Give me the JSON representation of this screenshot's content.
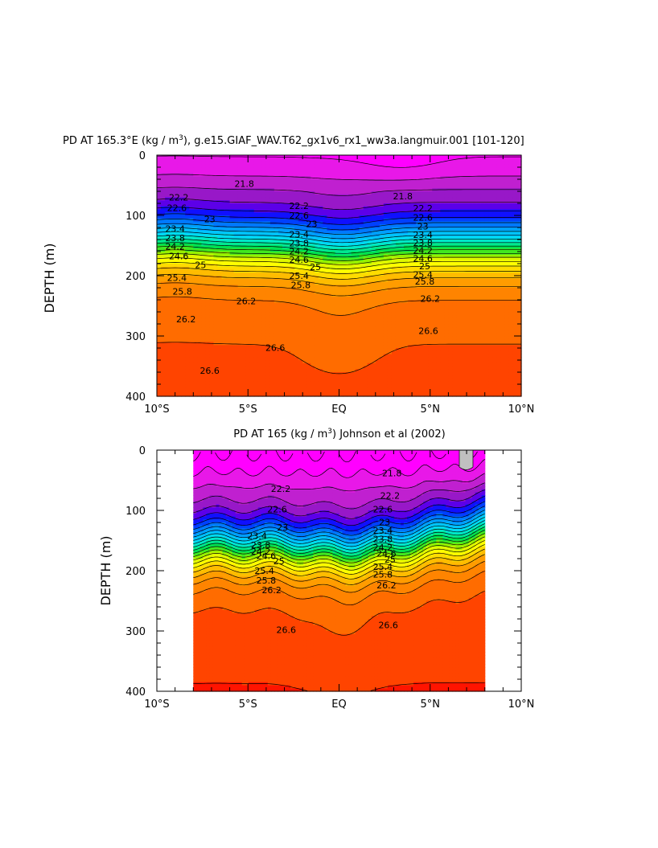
{
  "chart_data": [
    {
      "type": "heatmap",
      "subtype": "filled-contour",
      "title": "PD AT 165.3°E (kg / m³), g.e15.GIAF_WAV.T62_gx1v6_rx1_ww3a.langmuir.001 [101-120]",
      "title_main": "PD AT 165.3°E (kg / m",
      "title_sup": "3",
      "title_rest": "), g.e15.GIAF_WAV.T62_gx1v6_rx1_ww3a.langmuir.001 ",
      "title_bracket": "[101-120]",
      "xlabel": "",
      "ylabel": "DEPTH (m)",
      "xlim": [
        -10,
        10
      ],
      "ylim": [
        400,
        0
      ],
      "x_ticks": [
        -10,
        -5,
        0,
        5,
        10
      ],
      "x_tick_labels": [
        "10°S",
        "5°S",
        "EQ",
        "5°N",
        "10°N"
      ],
      "y_ticks": [
        0,
        100,
        200,
        300,
        400
      ],
      "y_tick_labels": [
        "0",
        "100",
        "200",
        "300",
        "400"
      ],
      "data_extent_lat": [
        -10,
        10
      ],
      "contour_interval": 0.2,
      "contour_levels": [
        21.4,
        21.6,
        21.8,
        22.0,
        22.2,
        22.4,
        22.6,
        22.8,
        23.0,
        23.2,
        23.4,
        23.6,
        23.8,
        24.0,
        24.2,
        24.4,
        24.6,
        24.8,
        25.0,
        25.2,
        25.4,
        25.6,
        25.8,
        26.0,
        26.2,
        26.4,
        26.6,
        26.8
      ],
      "contour_labels": [
        {
          "text": "21.8",
          "lat": -5.2,
          "depth": 47
        },
        {
          "text": "21.8",
          "lat": 3.5,
          "depth": 68
        },
        {
          "text": "22.2",
          "lat": -8.8,
          "depth": 70
        },
        {
          "text": "22.2",
          "lat": -2.2,
          "depth": 84
        },
        {
          "text": "22.2",
          "lat": 4.6,
          "depth": 88
        },
        {
          "text": "22.6",
          "lat": -8.9,
          "depth": 87
        },
        {
          "text": "22.6",
          "lat": -2.2,
          "depth": 100
        },
        {
          "text": "22.6",
          "lat": 4.6,
          "depth": 103
        },
        {
          "text": "23",
          "lat": -7.1,
          "depth": 106
        },
        {
          "text": "23",
          "lat": -1.5,
          "depth": 114
        },
        {
          "text": "23",
          "lat": 4.6,
          "depth": 118
        },
        {
          "text": "23.4",
          "lat": -9.0,
          "depth": 122
        },
        {
          "text": "23.4",
          "lat": -2.2,
          "depth": 131
        },
        {
          "text": "23.4",
          "lat": 4.6,
          "depth": 132
        },
        {
          "text": "23.8",
          "lat": -9.0,
          "depth": 137
        },
        {
          "text": "23.8",
          "lat": -2.2,
          "depth": 146
        },
        {
          "text": "23.8",
          "lat": 4.6,
          "depth": 145
        },
        {
          "text": "24.2",
          "lat": -9.0,
          "depth": 151
        },
        {
          "text": "24.2",
          "lat": -2.2,
          "depth": 159
        },
        {
          "text": "24.2",
          "lat": 4.6,
          "depth": 158
        },
        {
          "text": "24.6",
          "lat": -8.8,
          "depth": 167
        },
        {
          "text": "24.6",
          "lat": -2.2,
          "depth": 173
        },
        {
          "text": "24.6",
          "lat": 4.6,
          "depth": 171
        },
        {
          "text": "25",
          "lat": -7.6,
          "depth": 182
        },
        {
          "text": "25",
          "lat": -1.3,
          "depth": 185
        },
        {
          "text": "25",
          "lat": 4.7,
          "depth": 184
        },
        {
          "text": "25.4",
          "lat": -8.9,
          "depth": 203
        },
        {
          "text": "25.4",
          "lat": -2.2,
          "depth": 200
        },
        {
          "text": "25.4",
          "lat": 4.6,
          "depth": 198
        },
        {
          "text": "25.8",
          "lat": -8.6,
          "depth": 226
        },
        {
          "text": "25.8",
          "lat": -2.1,
          "depth": 215
        },
        {
          "text": "25.8",
          "lat": 4.7,
          "depth": 209
        },
        {
          "text": "26.2",
          "lat": -5.1,
          "depth": 242
        },
        {
          "text": "26.2",
          "lat": 5.0,
          "depth": 238
        },
        {
          "text": "26.2",
          "lat": -8.4,
          "depth": 272
        },
        {
          "text": "26.6",
          "lat": -3.5,
          "depth": 319
        },
        {
          "text": "26.6",
          "lat": 4.9,
          "depth": 291
        },
        {
          "text": "26.6",
          "lat": -7.1,
          "depth": 357
        }
      ]
    },
    {
      "type": "heatmap",
      "subtype": "filled-contour",
      "title": "PD AT 165 (kg / m³) Johnson et al (2002)",
      "title_main": "PD AT 165 (kg / m",
      "title_sup": "3",
      "title_rest": ") Johnson et al (2002)",
      "xlabel": "",
      "ylabel": "DEPTH (m)",
      "xlim": [
        -10,
        10
      ],
      "ylim": [
        400,
        0
      ],
      "x_ticks": [
        -10,
        -5,
        0,
        5,
        10
      ],
      "x_tick_labels": [
        "10°S",
        "5°S",
        "EQ",
        "5°N",
        "10°N"
      ],
      "y_ticks": [
        0,
        100,
        200,
        300,
        400
      ],
      "y_tick_labels": [
        "0",
        "100",
        "200",
        "300",
        "400"
      ],
      "data_extent_lat": [
        -8,
        8
      ],
      "contour_interval": 0.2,
      "contour_levels": [
        21.4,
        21.6,
        21.8,
        22.0,
        22.2,
        22.4,
        22.6,
        22.8,
        23.0,
        23.2,
        23.4,
        23.6,
        23.8,
        24.0,
        24.2,
        24.4,
        24.6,
        24.8,
        25.0,
        25.2,
        25.4,
        25.6,
        25.8,
        26.0,
        26.2,
        26.4,
        26.6,
        26.8
      ],
      "contour_labels": [
        {
          "text": "21.8",
          "lat": 2.9,
          "depth": 38
        },
        {
          "text": "22.2",
          "lat": -3.2,
          "depth": 64
        },
        {
          "text": "22.2",
          "lat": 2.8,
          "depth": 75
        },
        {
          "text": "22.6",
          "lat": -3.4,
          "depth": 98
        },
        {
          "text": "22.6",
          "lat": 2.4,
          "depth": 98
        },
        {
          "text": "23",
          "lat": -3.1,
          "depth": 128
        },
        {
          "text": "23",
          "lat": 2.5,
          "depth": 119
        },
        {
          "text": "23.4",
          "lat": -4.5,
          "depth": 142
        },
        {
          "text": "23.4",
          "lat": 2.4,
          "depth": 133
        },
        {
          "text": "23.8",
          "lat": -4.3,
          "depth": 157
        },
        {
          "text": "23.8",
          "lat": 2.4,
          "depth": 147
        },
        {
          "text": "24.2",
          "lat": -4.3,
          "depth": 168
        },
        {
          "text": "24.2",
          "lat": 2.4,
          "depth": 161
        },
        {
          "text": "24.6",
          "lat": -4.0,
          "depth": 175
        },
        {
          "text": "24.6",
          "lat": 2.6,
          "depth": 171
        },
        {
          "text": "25",
          "lat": -3.3,
          "depth": 184
        },
        {
          "text": "25",
          "lat": 2.8,
          "depth": 181
        },
        {
          "text": "25.4",
          "lat": -4.1,
          "depth": 200
        },
        {
          "text": "25.4",
          "lat": 2.4,
          "depth": 193
        },
        {
          "text": "25.8",
          "lat": -4.0,
          "depth": 216
        },
        {
          "text": "25.8",
          "lat": 2.4,
          "depth": 206
        },
        {
          "text": "26.2",
          "lat": -3.7,
          "depth": 232
        },
        {
          "text": "26.2",
          "lat": 2.6,
          "depth": 224
        },
        {
          "text": "26.6",
          "lat": -2.9,
          "depth": 298
        },
        {
          "text": "26.6",
          "lat": 2.7,
          "depth": 290
        }
      ]
    }
  ]
}
